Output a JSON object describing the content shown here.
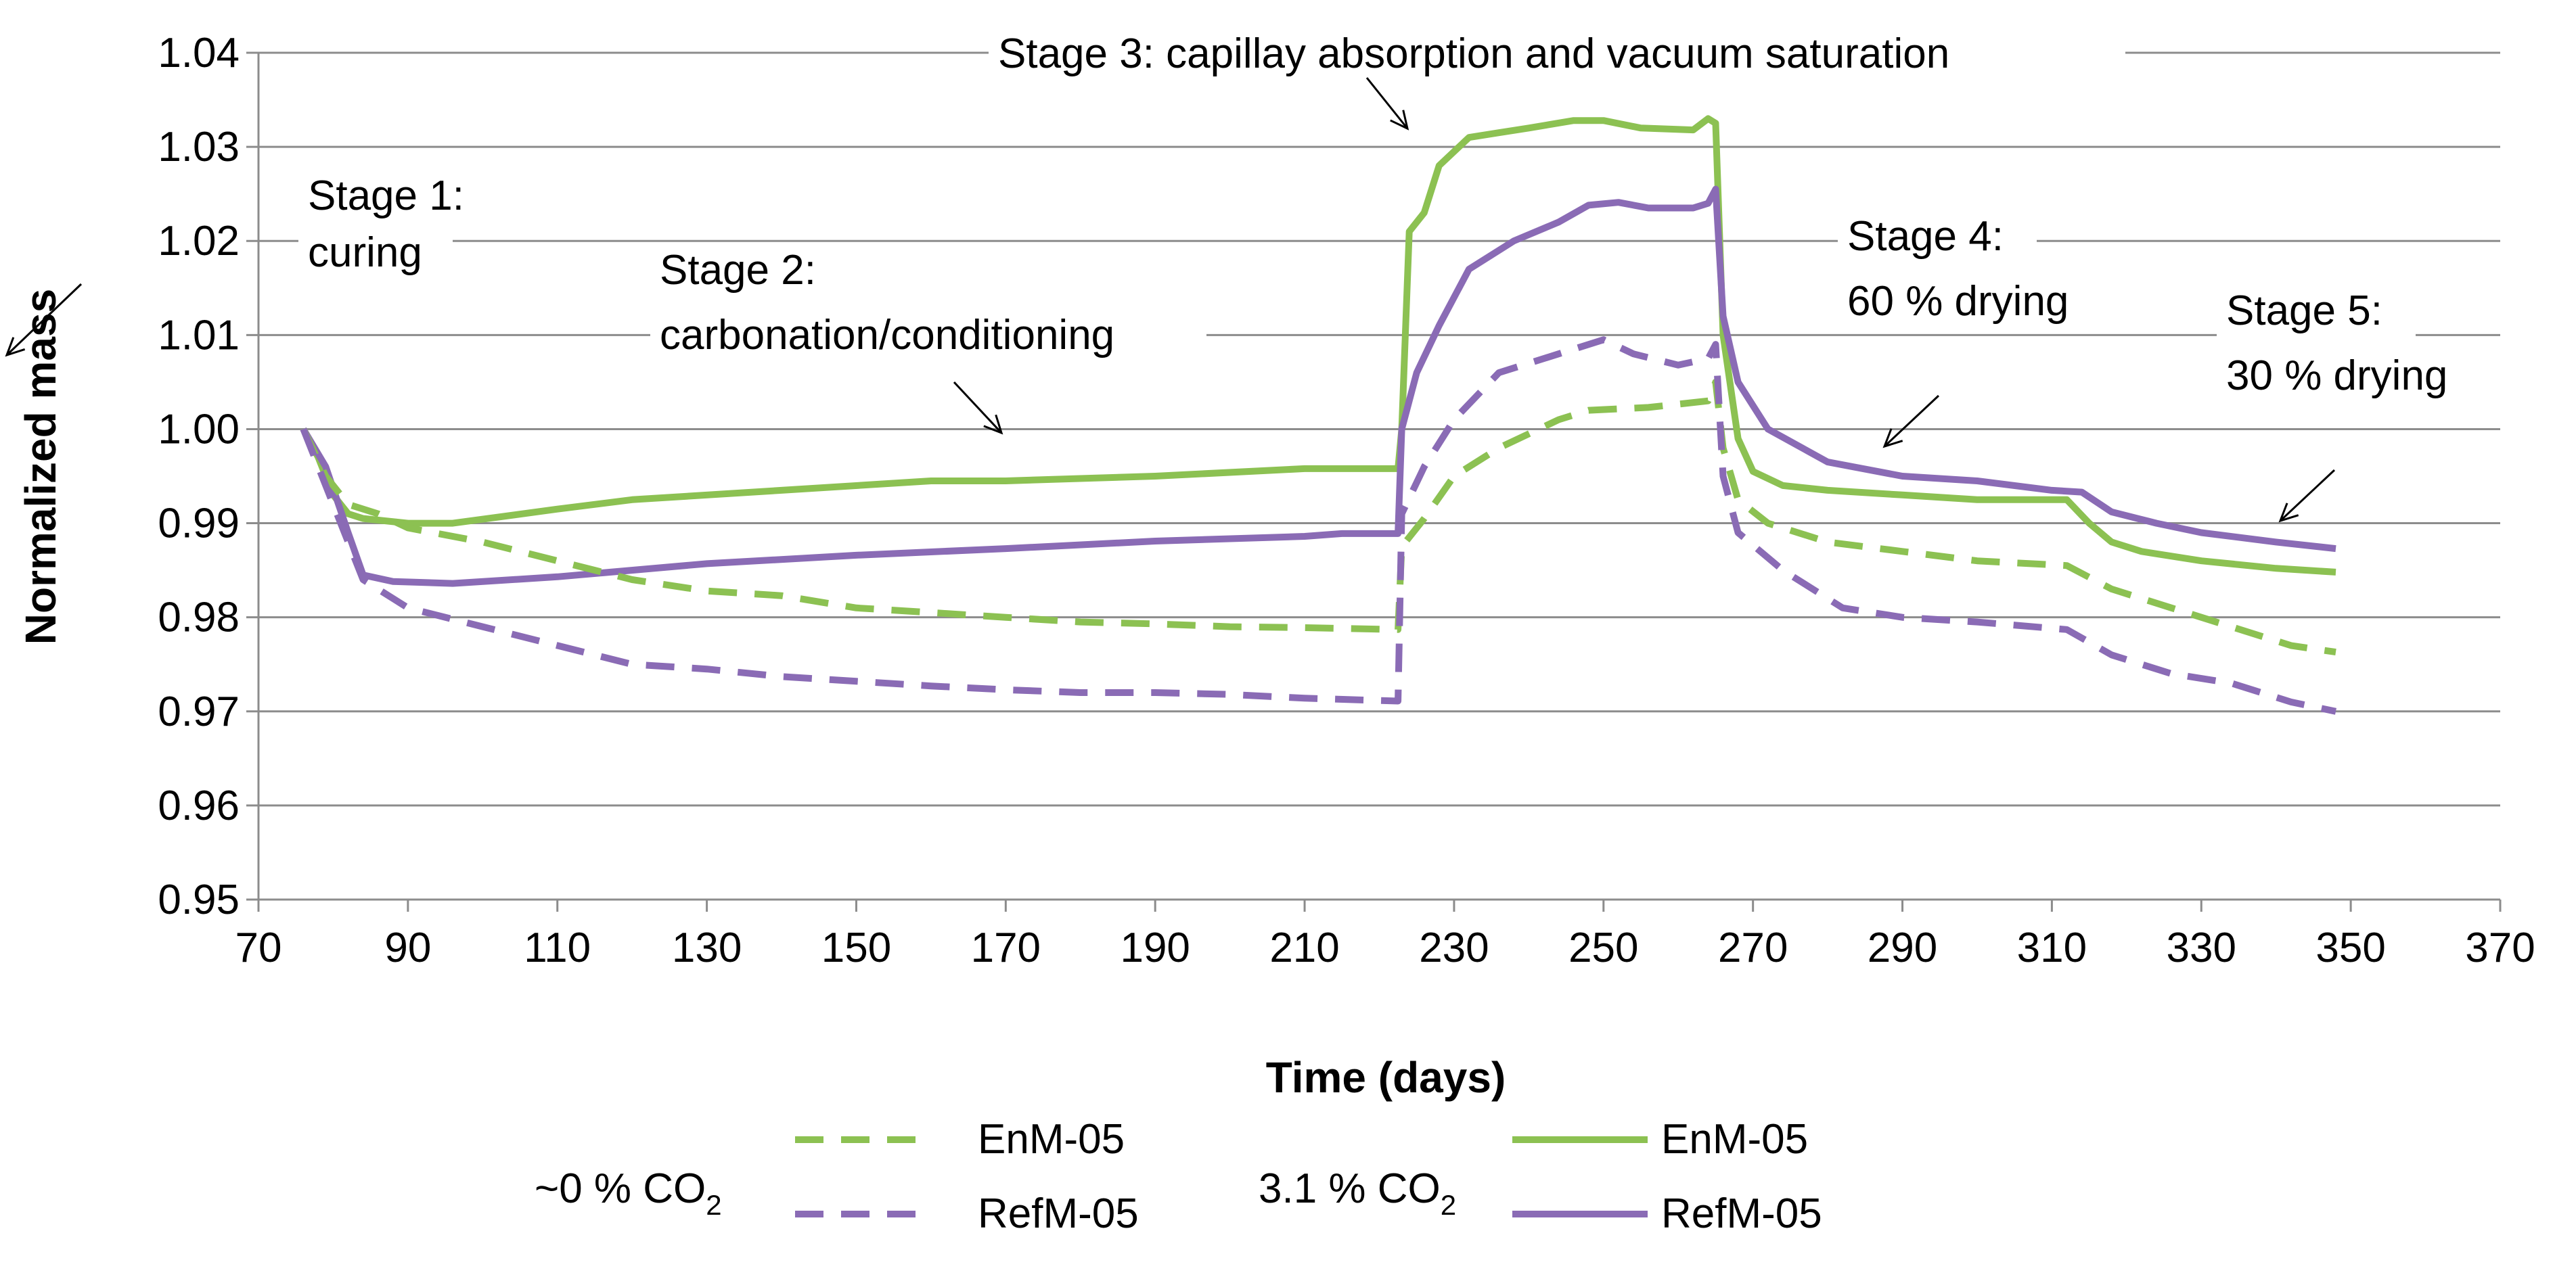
{
  "chart_data": {
    "type": "line",
    "xlabel": "Time (days)",
    "ylabel": "Normalized mass",
    "xlim": [
      70,
      370
    ],
    "ylim": [
      0.95,
      1.04
    ],
    "x_ticks": [
      "70",
      "90",
      "110",
      "130",
      "150",
      "170",
      "190",
      "210",
      "230",
      "250",
      "270",
      "290",
      "310",
      "330",
      "350",
      "370"
    ],
    "y_ticks": [
      "0.95",
      "0.96",
      "0.97",
      "0.98",
      "0.99",
      "1.00",
      "1.01",
      "1.02",
      "1.03",
      "1.04"
    ],
    "grid": true,
    "series": [
      {
        "name": "EnM-05",
        "group": "3.1 % CO2",
        "color": "#8cc152",
        "dash": "solid",
        "points": [
          [
            76,
            1.0
          ],
          [
            78,
            0.997
          ],
          [
            80,
            0.993
          ],
          [
            82,
            0.991
          ],
          [
            84,
            0.9905
          ],
          [
            90,
            0.99
          ],
          [
            96,
            0.99
          ],
          [
            110,
            0.9915
          ],
          [
            120,
            0.9925
          ],
          [
            140,
            0.9935
          ],
          [
            160,
            0.9945
          ],
          [
            170,
            0.9945
          ],
          [
            190,
            0.995
          ],
          [
            210,
            0.9958
          ],
          [
            222.5,
            0.9958
          ],
          [
            223,
            1.0
          ],
          [
            224,
            1.021
          ],
          [
            226,
            1.023
          ],
          [
            228,
            1.028
          ],
          [
            232,
            1.031
          ],
          [
            236,
            1.0315
          ],
          [
            240,
            1.032
          ],
          [
            246,
            1.0328
          ],
          [
            250,
            1.0328
          ],
          [
            255,
            1.032
          ],
          [
            262,
            1.0318
          ],
          [
            264,
            1.033
          ],
          [
            265,
            1.0325
          ],
          [
            266,
            1.01
          ],
          [
            268,
            0.999
          ],
          [
            270,
            0.9955
          ],
          [
            274,
            0.994
          ],
          [
            280,
            0.9935
          ],
          [
            290,
            0.993
          ],
          [
            300,
            0.9925
          ],
          [
            312,
            0.9925
          ],
          [
            315,
            0.99
          ],
          [
            318,
            0.988
          ],
          [
            322,
            0.987
          ],
          [
            330,
            0.986
          ],
          [
            340,
            0.9852
          ],
          [
            348,
            0.9848
          ]
        ]
      },
      {
        "name": "RefM-05",
        "group": "3.1 % CO2",
        "color": "#8a6bb5",
        "dash": "solid",
        "points": [
          [
            76,
            1.0
          ],
          [
            79,
            0.996
          ],
          [
            82,
            0.989
          ],
          [
            84,
            0.9845
          ],
          [
            88,
            0.9838
          ],
          [
            96,
            0.9836
          ],
          [
            110,
            0.9843
          ],
          [
            130,
            0.9857
          ],
          [
            150,
            0.9866
          ],
          [
            170,
            0.9873
          ],
          [
            190,
            0.9881
          ],
          [
            210,
            0.9886
          ],
          [
            215,
            0.9889
          ],
          [
            222.5,
            0.9889
          ],
          [
            223,
            1.0
          ],
          [
            225,
            1.006
          ],
          [
            228,
            1.011
          ],
          [
            232,
            1.017
          ],
          [
            238,
            1.02
          ],
          [
            244,
            1.022
          ],
          [
            248,
            1.0238
          ],
          [
            252,
            1.0241
          ],
          [
            256,
            1.0235
          ],
          [
            262,
            1.0235
          ],
          [
            264,
            1.024
          ],
          [
            265,
            1.0255
          ],
          [
            266,
            1.012
          ],
          [
            268,
            1.005
          ],
          [
            272,
            1.0
          ],
          [
            280,
            0.9965
          ],
          [
            290,
            0.995
          ],
          [
            300,
            0.9945
          ],
          [
            310,
            0.9935
          ],
          [
            314,
            0.9933
          ],
          [
            318,
            0.9912
          ],
          [
            324,
            0.99
          ],
          [
            330,
            0.989
          ],
          [
            340,
            0.988
          ],
          [
            348,
            0.9873
          ]
        ]
      },
      {
        "name": "EnM-05",
        "group": "~0 % CO2",
        "color": "#8cc152",
        "dash": "dashed",
        "points": [
          [
            76,
            1.0
          ],
          [
            79,
            0.995
          ],
          [
            82,
            0.992
          ],
          [
            86,
            0.991
          ],
          [
            90,
            0.9895
          ],
          [
            100,
            0.988
          ],
          [
            110,
            0.986
          ],
          [
            120,
            0.984
          ],
          [
            130,
            0.9828
          ],
          [
            140,
            0.9823
          ],
          [
            150,
            0.981
          ],
          [
            160,
            0.9805
          ],
          [
            170,
            0.98
          ],
          [
            180,
            0.9795
          ],
          [
            190,
            0.9793
          ],
          [
            200,
            0.979
          ],
          [
            210,
            0.9789
          ],
          [
            222.5,
            0.9787
          ],
          [
            223,
            0.9875
          ],
          [
            226,
            0.9905
          ],
          [
            230,
            0.995
          ],
          [
            236,
            0.998
          ],
          [
            244,
            1.001
          ],
          [
            248,
            1.002
          ],
          [
            256,
            1.0023
          ],
          [
            264,
            1.003
          ],
          [
            265,
            1.005
          ],
          [
            266,
            0.998
          ],
          [
            268,
            0.9925
          ],
          [
            272,
            0.99
          ],
          [
            280,
            0.988
          ],
          [
            290,
            0.987
          ],
          [
            300,
            0.986
          ],
          [
            312,
            0.9855
          ],
          [
            318,
            0.983
          ],
          [
            326,
            0.981
          ],
          [
            334,
            0.979
          ],
          [
            342,
            0.977
          ],
          [
            348,
            0.9763
          ]
        ]
      },
      {
        "name": "RefM-05",
        "group": "~0 % CO2",
        "color": "#8a6bb5",
        "dash": "dashed",
        "points": [
          [
            76,
            1.0
          ],
          [
            80,
            0.992
          ],
          [
            84,
            0.984
          ],
          [
            90,
            0.981
          ],
          [
            100,
            0.979
          ],
          [
            110,
            0.977
          ],
          [
            120,
            0.975
          ],
          [
            130,
            0.9745
          ],
          [
            140,
            0.9737
          ],
          [
            150,
            0.9732
          ],
          [
            160,
            0.9727
          ],
          [
            170,
            0.9723
          ],
          [
            180,
            0.972
          ],
          [
            190,
            0.972
          ],
          [
            200,
            0.9718
          ],
          [
            210,
            0.9714
          ],
          [
            222.5,
            0.9711
          ],
          [
            223,
            0.991
          ],
          [
            226,
            0.996
          ],
          [
            230,
            1.001
          ],
          [
            236,
            1.006
          ],
          [
            244,
            1.008
          ],
          [
            250,
            1.0095
          ],
          [
            254,
            1.008
          ],
          [
            260,
            1.0068
          ],
          [
            264,
            1.0075
          ],
          [
            265,
            1.009
          ],
          [
            266,
            0.995
          ],
          [
            268,
            0.989
          ],
          [
            274,
            0.985
          ],
          [
            282,
            0.981
          ],
          [
            290,
            0.98
          ],
          [
            300,
            0.9795
          ],
          [
            312,
            0.9787
          ],
          [
            318,
            0.976
          ],
          [
            326,
            0.974
          ],
          [
            334,
            0.973
          ],
          [
            342,
            0.971
          ],
          [
            348,
            0.97
          ]
        ]
      }
    ],
    "annotations": [
      {
        "lines": [
          "Stage 1:",
          "curing"
        ],
        "x": 72,
        "y": 1.0011
      },
      {
        "lines": [
          "Stage 2:",
          "carbonation/conditioning"
        ],
        "x": 170,
        "y": 0.9954
      },
      {
        "lines": [
          "Stage 3: capillay absorption and vacuum saturation"
        ],
        "x": 227,
        "y": 1.0305
      },
      {
        "lines": [
          "Stage 4:",
          "60 % drying"
        ],
        "x": 286,
        "y": 0.9962
      },
      {
        "lines": [
          "Stage 5:",
          "30 % drying"
        ],
        "x": 337,
        "y": 0.9902
      }
    ],
    "legend": {
      "placement": "bottom",
      "groups": [
        {
          "label": "~0 % CO",
          "subscript": "2",
          "entries": [
            {
              "name": "EnM-05",
              "color": "#8cc152",
              "dash": "dashed"
            },
            {
              "name": "RefM-05",
              "color": "#8a6bb5",
              "dash": "dashed"
            }
          ]
        },
        {
          "label": "3.1 % CO",
          "subscript": "2",
          "entries": [
            {
              "name": "EnM-05",
              "color": "#8cc152",
              "dash": "solid"
            },
            {
              "name": "RefM-05",
              "color": "#8a6bb5",
              "dash": "solid"
            }
          ]
        }
      ]
    }
  }
}
